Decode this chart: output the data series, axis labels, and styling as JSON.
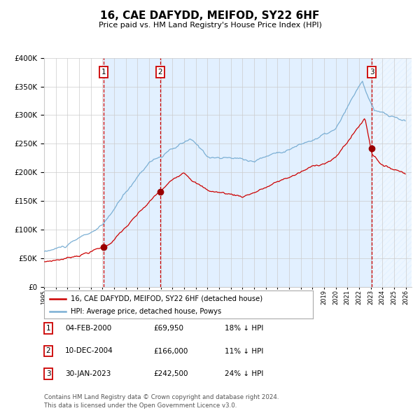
{
  "title": "16, CAE DAFYDD, MEIFOD, SY22 6HF",
  "subtitle": "Price paid vs. HM Land Registry's House Price Index (HPI)",
  "footer1": "Contains HM Land Registry data © Crown copyright and database right 2024.",
  "footer2": "This data is licensed under the Open Government Licence v3.0.",
  "legend_line1": "16, CAE DAFYDD, MEIFOD, SY22 6HF (detached house)",
  "legend_line2": "HPI: Average price, detached house, Powys",
  "transactions": [
    {
      "num": 1,
      "date": "04-FEB-2000",
      "price": 69950,
      "pct": "18%",
      "dir": "↓"
    },
    {
      "num": 2,
      "date": "10-DEC-2004",
      "price": 166000,
      "pct": "11%",
      "dir": "↓"
    },
    {
      "num": 3,
      "date": "30-JAN-2023",
      "price": 242500,
      "pct": "24%",
      "dir": "↓"
    }
  ],
  "sale_dates_decimal": [
    2000.09,
    2004.94,
    2023.08
  ],
  "sale_prices": [
    69950,
    166000,
    242500
  ],
  "hpi_color": "#7bafd4",
  "price_color": "#cc0000",
  "point_color": "#990000",
  "dashed_color": "#cc0000",
  "shade_color": "#ddeeff",
  "ylim": [
    0,
    400000
  ],
  "xlim_start": 1995.0,
  "xlim_end": 2026.5,
  "background_color": "#ffffff",
  "grid_color": "#cccccc"
}
